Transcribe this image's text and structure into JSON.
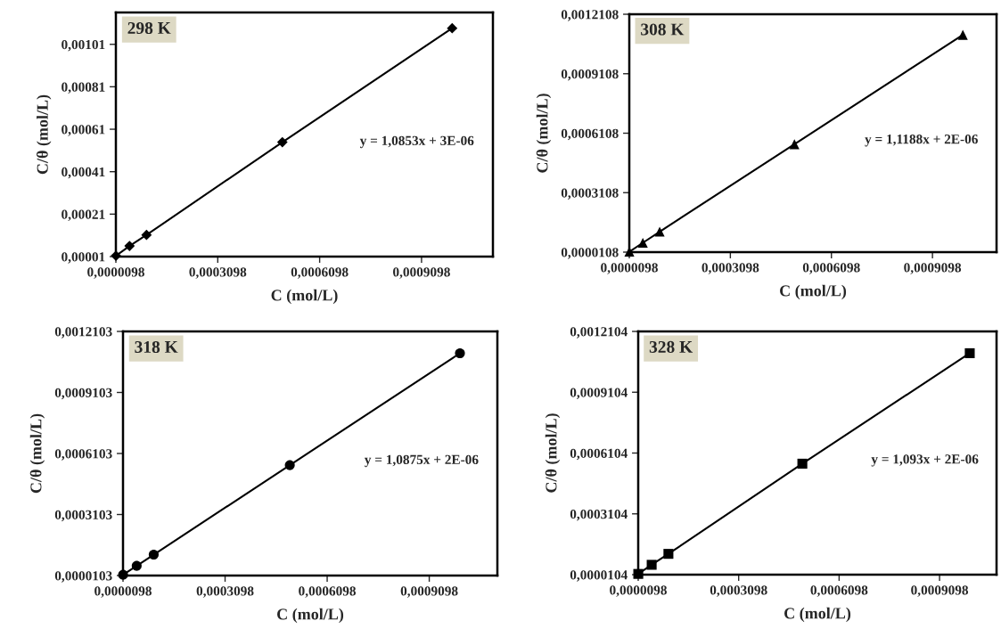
{
  "chart_data": [
    {
      "type": "line",
      "xlabel": "C (mol/L)",
      "ylabel": "C/θ (mol/L)",
      "annotations": [
        "298 K",
        "y = 1,0853x + 3E-06"
      ],
      "marker": "diamond",
      "grid": false,
      "legend": false,
      "x": [
        1e-05,
        5e-05,
        0.0001,
        0.0005,
        0.001
      ],
      "series": [
        {
          "color": "#000000",
          "values": [
            1.4e-05,
            6e-05,
            0.000112,
            0.000549,
            0.001086
          ]
        }
      ],
      "xlim": [
        9.8e-06,
        0.00112
      ],
      "xticks": [
        {
          "value": 9.8e-06,
          "label": "0,0000098"
        },
        {
          "value": 0.0003098,
          "label": "0,0003098"
        },
        {
          "value": 0.0006098,
          "label": "0,0006098"
        },
        {
          "value": 0.0009098,
          "label": "0,0009098"
        }
      ],
      "ylim": [
        1e-05,
        0.00116
      ],
      "yticks": [
        {
          "value": 1e-05,
          "label": "0,00001"
        },
        {
          "value": 0.00021,
          "label": "0,00021"
        },
        {
          "value": 0.00041,
          "label": "0,00041"
        },
        {
          "value": 0.00061,
          "label": "0,00061"
        },
        {
          "value": 0.00081,
          "label": "0,00081"
        },
        {
          "value": 0.00101,
          "label": "0,00101"
        }
      ]
    },
    {
      "type": "line",
      "xlabel": "C (mol/L)",
      "ylabel": "C/θ (mol/L)",
      "annotations": [
        "308 K",
        "y = 1,1188x + 2E-06"
      ],
      "marker": "triangle",
      "grid": false,
      "legend": false,
      "x": [
        1e-05,
        5e-05,
        0.0001,
        0.0005,
        0.001
      ],
      "series": [
        {
          "color": "#000000",
          "values": [
            1.3e-05,
            5.8e-05,
            0.000114,
            0.000555,
            0.001107
          ]
        }
      ],
      "xlim": [
        9.8e-06,
        0.0011
      ],
      "xticks": [
        {
          "value": 9.8e-06,
          "label": "0,0000098"
        },
        {
          "value": 0.0003098,
          "label": "0,0003098"
        },
        {
          "value": 0.0006098,
          "label": "0,0006098"
        },
        {
          "value": 0.0009098,
          "label": "0,0009098"
        }
      ],
      "ylim": [
        1.08e-05,
        0.0012108
      ],
      "yticks": [
        {
          "value": 1.08e-05,
          "label": "0,0000108"
        },
        {
          "value": 0.0003108,
          "label": "0,0003108"
        },
        {
          "value": 0.0006108,
          "label": "0,0006108"
        },
        {
          "value": 0.0009108,
          "label": "0,0009108"
        },
        {
          "value": 0.0012108,
          "label": "0,0012108"
        }
      ]
    },
    {
      "type": "line",
      "xlabel": "C (mol/L)",
      "ylabel": "C/θ (mol/L)",
      "annotations": [
        "318 K",
        "y = 1,0875x + 2E-06"
      ],
      "marker": "circle",
      "grid": false,
      "legend": false,
      "x": [
        1e-05,
        5e-05,
        0.0001,
        0.0005,
        0.001
      ],
      "series": [
        {
          "color": "#000000",
          "values": [
            1.4e-05,
            5.8e-05,
            0.000113,
            0.000553,
            0.001103
          ]
        }
      ],
      "xlim": [
        9.8e-06,
        0.00111
      ],
      "xticks": [
        {
          "value": 9.8e-06,
          "label": "0,0000098"
        },
        {
          "value": 0.0003098,
          "label": "0,0003098"
        },
        {
          "value": 0.0006098,
          "label": "0,0006098"
        },
        {
          "value": 0.0009098,
          "label": "0,0009098"
        }
      ],
      "ylim": [
        1.03e-05,
        0.0012103
      ],
      "yticks": [
        {
          "value": 1.03e-05,
          "label": "0,0000103"
        },
        {
          "value": 0.0003103,
          "label": "0,0003103"
        },
        {
          "value": 0.0006103,
          "label": "0,0006103"
        },
        {
          "value": 0.0009103,
          "label": "0,0009103"
        },
        {
          "value": 0.0012103,
          "label": "0,0012103"
        }
      ]
    },
    {
      "type": "line",
      "xlabel": "C (mol/L)",
      "ylabel": "C/θ (mol/L)",
      "annotations": [
        "328 K",
        "y = 1,093x + 2E-06"
      ],
      "marker": "square",
      "grid": false,
      "legend": false,
      "x": [
        1e-05,
        5e-05,
        0.0001,
        0.0005,
        0.001
      ],
      "series": [
        {
          "color": "#000000",
          "values": [
            1.4e-05,
            5.9e-05,
            0.000113,
            0.000558,
            0.001103
          ]
        }
      ],
      "xlim": [
        9.8e-06,
        0.00108
      ],
      "xticks": [
        {
          "value": 9.8e-06,
          "label": "0,0000098"
        },
        {
          "value": 0.0003098,
          "label": "0,0003098"
        },
        {
          "value": 0.0006098,
          "label": "0,0006098"
        },
        {
          "value": 0.0009098,
          "label": "0,0009098"
        }
      ],
      "ylim": [
        1.04e-05,
        0.0012104
      ],
      "yticks": [
        {
          "value": 1.04e-05,
          "label": "0,0000104"
        },
        {
          "value": 0.0003104,
          "label": "0,0003104"
        },
        {
          "value": 0.0006104,
          "label": "0,0006104"
        },
        {
          "value": 0.0009104,
          "label": "0,0009104"
        },
        {
          "value": 0.0012104,
          "label": "0,0012104"
        }
      ]
    }
  ]
}
